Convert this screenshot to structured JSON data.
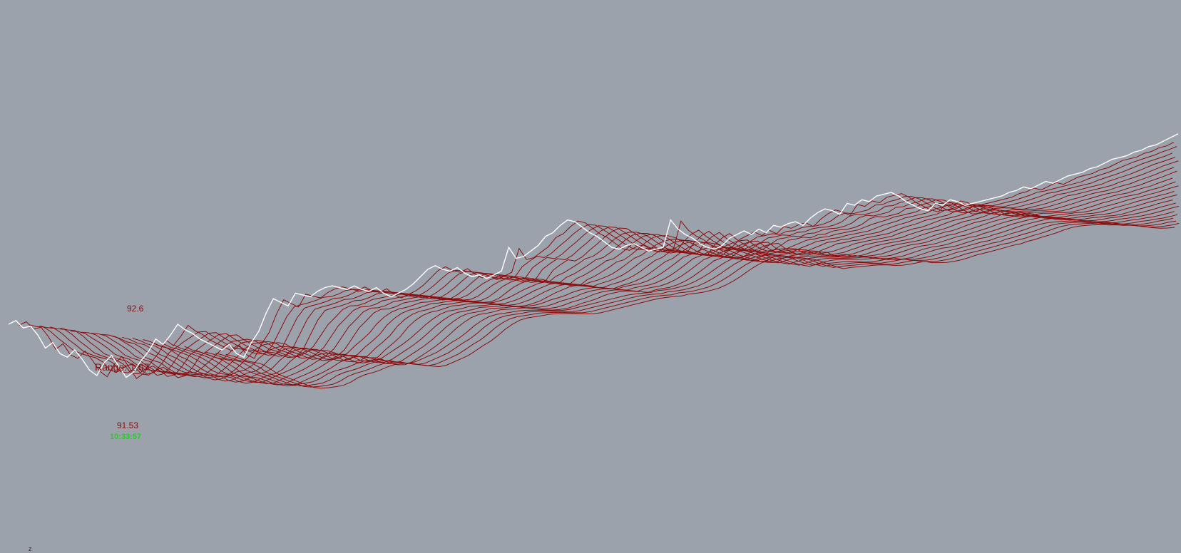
{
  "chart_data": {
    "type": "line",
    "style": "3d-stacked-history-ridges",
    "max_value": "92.6",
    "range_label": "Range: 1.07",
    "min_value": "91.53",
    "timestamp": "10:33:57",
    "axis_label": "z",
    "ridge_count": 22,
    "x": [
      0,
      1,
      2,
      3,
      4,
      5,
      6,
      7,
      8,
      9,
      10,
      11,
      12,
      13,
      14,
      15,
      16,
      17,
      18,
      19,
      20,
      21,
      22,
      23,
      24,
      25,
      26,
      27,
      28,
      29,
      30,
      31,
      32,
      33,
      34,
      35,
      36,
      37,
      38,
      39,
      40,
      41,
      42,
      43,
      44,
      45,
      46,
      47,
      48,
      49,
      50,
      51,
      52,
      53,
      54,
      55,
      56,
      57,
      58,
      59,
      60,
      61,
      62,
      63,
      64,
      65,
      66,
      67,
      68,
      69,
      70,
      71,
      72,
      73,
      74,
      75,
      76,
      77,
      78,
      79,
      80,
      81,
      82,
      83,
      84,
      85,
      86,
      87,
      88,
      89,
      90,
      91,
      92,
      93,
      94,
      95,
      96,
      97,
      98,
      99,
      100,
      101,
      102,
      103,
      104,
      105,
      106,
      107,
      108,
      109,
      110,
      111,
      112,
      113,
      114,
      115,
      116,
      117,
      118,
      119,
      120,
      121,
      122,
      123,
      124,
      125,
      126,
      127,
      128,
      129,
      130,
      131,
      132,
      133,
      134,
      135,
      136,
      137,
      138,
      139,
      140,
      141,
      142,
      143,
      144,
      145,
      146,
      147,
      148,
      149,
      150,
      151,
      152,
      153,
      154,
      155,
      156,
      157,
      158,
      159
    ],
    "series": [
      {
        "values": [
          91.88,
          91.9,
          91.86,
          91.87,
          91.82,
          91.75,
          91.78,
          91.72,
          91.7,
          91.74,
          91.69,
          91.63,
          91.6,
          91.67,
          91.71,
          91.65,
          91.59,
          91.62,
          91.68,
          91.73,
          91.8,
          91.77,
          91.82,
          91.88,
          91.85,
          91.83,
          91.8,
          91.78,
          91.76,
          91.74,
          91.77,
          91.72,
          91.7,
          91.78,
          91.84,
          91.94,
          92.02,
          92.0,
          91.98,
          92.05,
          92.04,
          92.03,
          92.06,
          92.08,
          92.09,
          92.08,
          92.07,
          92.09,
          92.07,
          92.06,
          92.08,
          92.05,
          92.03,
          92.05,
          92.07,
          92.1,
          92.14,
          92.18,
          92.2,
          92.18,
          92.17,
          92.19,
          92.16,
          92.14,
          92.15,
          92.13,
          92.15,
          92.17,
          92.3,
          92.24,
          92.25,
          92.28,
          92.31,
          92.36,
          92.38,
          92.42,
          92.45,
          92.44,
          92.41,
          92.38,
          92.36,
          92.33,
          92.3,
          92.29,
          92.31,
          92.32,
          92.3,
          92.28,
          92.29,
          92.3,
          92.45,
          92.4,
          92.37,
          92.35,
          92.32,
          92.3,
          92.29,
          92.31,
          92.35,
          92.37,
          92.39,
          92.37,
          92.4,
          92.38,
          92.42,
          92.41,
          92.43,
          92.44,
          92.42,
          92.46,
          92.49,
          92.51,
          92.5,
          92.48,
          92.54,
          92.53,
          92.56,
          92.55,
          92.58,
          92.59,
          92.6,
          92.58,
          92.55,
          92.53,
          92.51,
          92.5,
          92.54,
          92.53,
          92.56,
          92.55,
          92.53,
          92.54,
          92.55,
          92.56,
          92.57,
          92.58,
          92.6,
          92.61,
          92.63,
          92.62,
          92.64,
          92.66,
          92.65,
          92.67,
          92.69,
          92.7,
          92.71,
          92.73,
          92.74,
          92.76,
          92.78,
          92.79,
          92.8,
          92.82,
          92.83,
          92.85,
          92.86,
          92.88,
          92.9,
          92.92
        ]
      }
    ],
    "colors": {
      "background": "#9ba2ab",
      "current_line": "#ffffff",
      "history_lines": "#8b0d0d",
      "value_labels": "#8b0d0d",
      "timestamp": "#1fd11f"
    },
    "grid": false,
    "legend": "none"
  }
}
